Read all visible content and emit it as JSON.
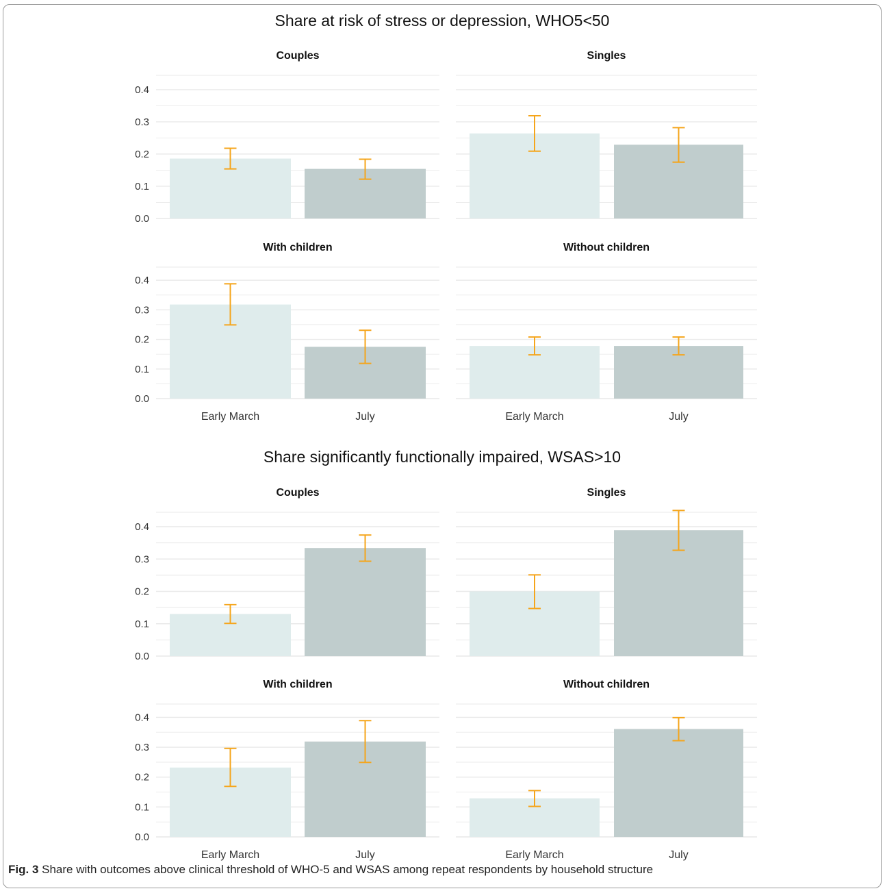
{
  "chart_data": {
    "type": "bar",
    "colors": {
      "early_march_bar": "#dfecec",
      "july_bar": "#c0cdcd",
      "error_bar": "#f5a51b",
      "grid": "#e9e9e9",
      "text": "#333333"
    },
    "categories": [
      "Early March",
      "July"
    ],
    "yticks": [
      "0.0",
      "0.1",
      "0.2",
      "0.3",
      "0.4"
    ],
    "ylim": [
      0,
      0.4
    ],
    "sections": [
      {
        "title": "Share at risk of stress or depression, WHO5<50",
        "panels": [
          {
            "title": "Couples",
            "values": [
              0.186,
              0.154
            ],
            "lower": [
              0.154,
              0.122
            ],
            "upper": [
              0.218,
              0.184
            ]
          },
          {
            "title": "Singles",
            "values": [
              0.264,
              0.229
            ],
            "lower": [
              0.209,
              0.175
            ],
            "upper": [
              0.319,
              0.282
            ]
          },
          {
            "title": "With children",
            "values": [
              0.318,
              0.175
            ],
            "lower": [
              0.249,
              0.119
            ],
            "upper": [
              0.388,
              0.231
            ]
          },
          {
            "title": "Without children",
            "values": [
              0.178,
              0.178
            ],
            "lower": [
              0.148,
              0.148
            ],
            "upper": [
              0.208,
              0.208
            ]
          }
        ]
      },
      {
        "title": "Share significantly functionally impaired, WSAS>10",
        "panels": [
          {
            "title": "Couples",
            "values": [
              0.13,
              0.334
            ],
            "lower": [
              0.101,
              0.293
            ],
            "upper": [
              0.159,
              0.374
            ]
          },
          {
            "title": "Singles",
            "values": [
              0.2,
              0.389
            ],
            "lower": [
              0.147,
              0.327
            ],
            "upper": [
              0.251,
              0.45
            ]
          },
          {
            "title": "With children",
            "values": [
              0.232,
              0.319
            ],
            "lower": [
              0.169,
              0.249
            ],
            "upper": [
              0.296,
              0.389
            ]
          },
          {
            "title": "Without children",
            "values": [
              0.129,
              0.361
            ],
            "lower": [
              0.102,
              0.322
            ],
            "upper": [
              0.155,
              0.399
            ]
          }
        ]
      }
    ]
  },
  "caption": {
    "label": "Fig. 3",
    "text": " Share with outcomes above clinical threshold of WHO-5 and WSAS among repeat respondents by household structure"
  }
}
